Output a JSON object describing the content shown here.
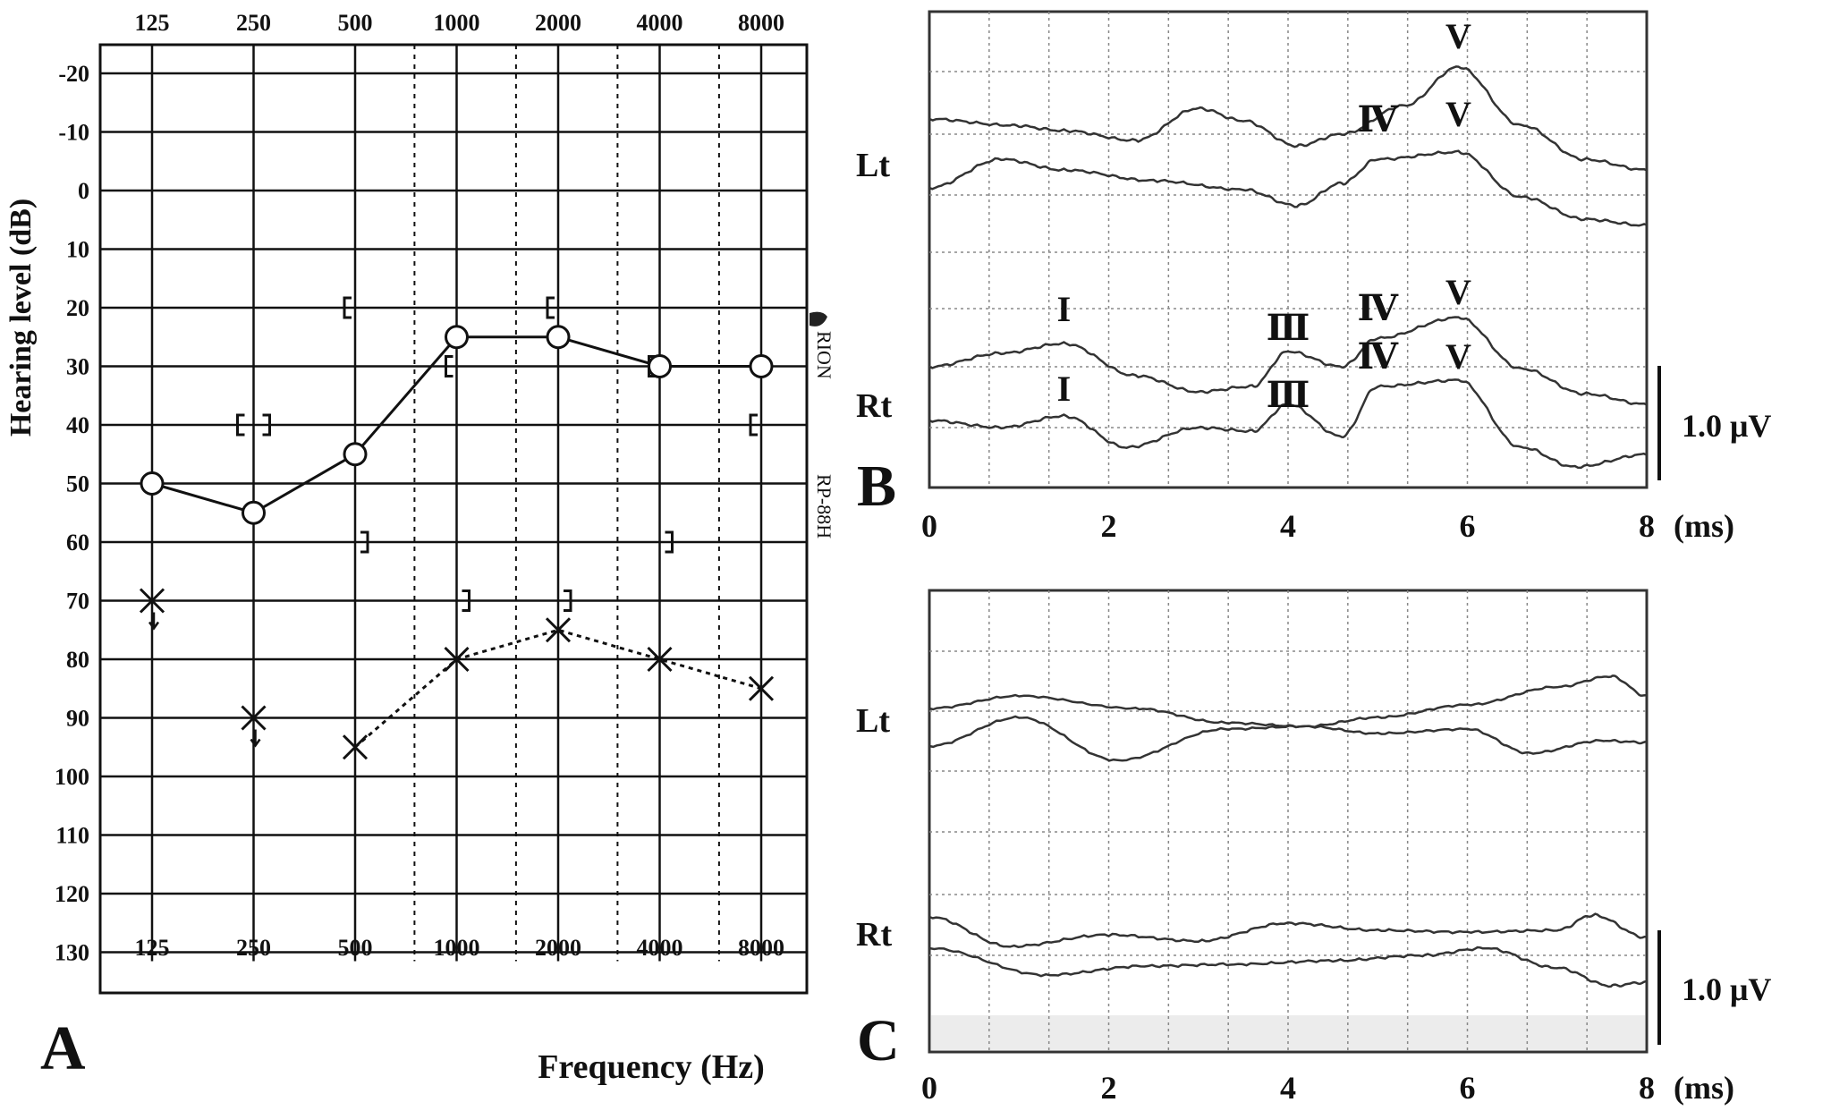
{
  "panel_a_label": "A",
  "panel_b_label": "B",
  "panel_c_label": "C",
  "chart_data": [
    {
      "type": "line",
      "panel": "A",
      "brand_text": "RION",
      "model_text": "RP-88H",
      "xlabel": "Frequency (Hz)",
      "ylabel": "Hearing level (dB)",
      "x_ticks": [
        "125",
        "250",
        "500",
        "1000",
        "2000",
        "4000",
        "8000"
      ],
      "y_ticks": [
        "-20",
        "-10",
        "0",
        "10",
        "20",
        "30",
        "40",
        "50",
        "60",
        "70",
        "80",
        "90",
        "100",
        "110",
        "120",
        "130"
      ],
      "ylim": [
        -20,
        130
      ],
      "y_inverted": true,
      "x_scale": "log2",
      "series": [
        {
          "marker": "circle",
          "line": "solid",
          "x": [
            125,
            250,
            500,
            1000,
            2000,
            4000,
            8000
          ],
          "y": [
            50,
            55,
            45,
            25,
            25,
            30,
            30
          ]
        },
        {
          "marker": "cross",
          "line": "dotted",
          "x": [
            500,
            1000,
            2000,
            4000,
            8000
          ],
          "y": [
            95,
            80,
            75,
            80,
            85
          ]
        },
        {
          "marker": "cross-no-response",
          "line": "none",
          "x": [
            125,
            250
          ],
          "y": [
            70,
            90
          ]
        },
        {
          "marker": "bracket-left",
          "line": "none",
          "x": [
            500,
            1000,
            2000,
            4000,
            8000
          ],
          "y": [
            20,
            30,
            20,
            30,
            40
          ]
        },
        {
          "marker": "bracket-pair",
          "line": "none",
          "x": [
            250
          ],
          "y": [
            40
          ]
        },
        {
          "marker": "bracket-right",
          "line": "none",
          "x": [
            500,
            1000,
            2000,
            4000
          ],
          "y": [
            60,
            70,
            70,
            60
          ]
        }
      ],
      "grid": true
    },
    {
      "type": "line",
      "panel": "B",
      "x_ticks": [
        "0",
        "2",
        "4",
        "6",
        "8"
      ],
      "x_unit": "(ms)",
      "xlim": [
        0,
        8
      ],
      "scale_label": "1.0 μV",
      "groups": [
        {
          "label": "Lt",
          "peaks": [
            {
              "label": "Ⅳ",
              "x": 5.0
            },
            {
              "label": "V",
              "x": 5.9
            }
          ]
        },
        {
          "label": "Rt",
          "peaks": [
            {
              "label": "I",
              "x": 1.5
            },
            {
              "label": "Ⅲ",
              "x": 4.0
            },
            {
              "label": "Ⅳ",
              "x": 5.0
            },
            {
              "label": "V",
              "x": 5.9
            }
          ]
        }
      ],
      "grid": true
    },
    {
      "type": "line",
      "panel": "C",
      "x_ticks": [
        "0",
        "2",
        "4",
        "6",
        "8"
      ],
      "x_unit": "(ms)",
      "xlim": [
        0,
        8
      ],
      "scale_label": "1.0 μV",
      "groups": [
        {
          "label": "Lt",
          "peaks": []
        },
        {
          "label": "Rt",
          "peaks": []
        }
      ],
      "grid": true
    }
  ]
}
